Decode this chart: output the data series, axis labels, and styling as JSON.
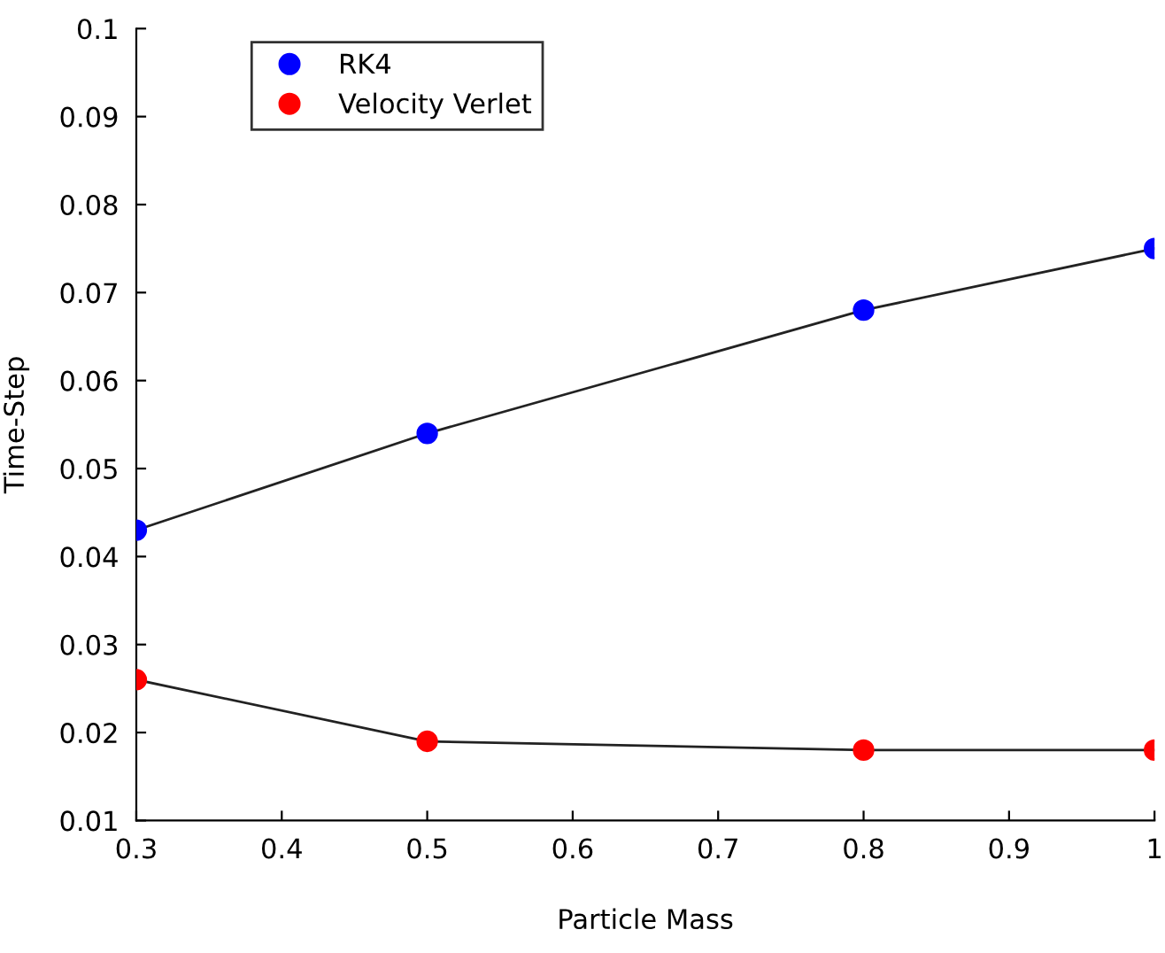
{
  "chart_data": {
    "type": "line",
    "xlabel": "Particle Mass",
    "ylabel": "Time-Step",
    "x": [
      0.3,
      0.5,
      0.8,
      1
    ],
    "series": [
      {
        "name": "RK4",
        "color": "#0000ff",
        "values": [
          0.043,
          0.054,
          0.068,
          0.075
        ]
      },
      {
        "name": "Velocity Verlet",
        "color": "#ff0000",
        "values": [
          0.026,
          0.019,
          0.018,
          0.018
        ]
      }
    ],
    "xlim": [
      0.3,
      1
    ],
    "xticks": [
      0.3,
      0.4,
      0.5,
      0.6,
      0.7,
      0.8,
      0.9,
      {
        "value": 1,
        "label": "1"
      }
    ],
    "ylim": [
      0.01,
      0.1
    ],
    "yticks": [
      0.01,
      0.02,
      0.03,
      0.04,
      0.05,
      0.06,
      0.07,
      0.08,
      0.09,
      0.1
    ],
    "marker": "circle",
    "grid": false,
    "legend": "top left"
  }
}
